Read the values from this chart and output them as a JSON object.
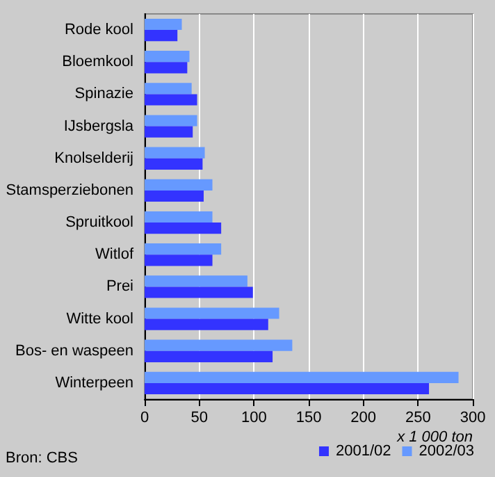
{
  "chart_data": {
    "type": "bar",
    "orientation": "horizontal",
    "categories": [
      "Rode kool",
      "Bloemkool",
      "Spinazie",
      "IJsbergsla",
      "Knolselderij",
      "Stamsperziebonen",
      "Spruitkool",
      "Witlof",
      "Prei",
      "Witte kool",
      "Bos- en waspeen",
      "Winterpeen"
    ],
    "series": [
      {
        "name": "2001/02",
        "color": "#3333ff",
        "values": [
          30,
          39,
          48,
          44,
          53,
          54,
          70,
          62,
          99,
          113,
          117,
          260
        ]
      },
      {
        "name": "2002/03",
        "color": "#6699ff",
        "values": [
          34,
          41,
          43,
          48,
          55,
          62,
          62,
          70,
          94,
          123,
          135,
          287
        ]
      }
    ],
    "xlim": [
      0,
      300
    ],
    "xticks": [
      0,
      50,
      100,
      150,
      200,
      250,
      300
    ],
    "xlabel": "x 1 000 ton",
    "annotations": [
      "Bron: CBS"
    ],
    "grid": "x",
    "legend": "bottom"
  }
}
